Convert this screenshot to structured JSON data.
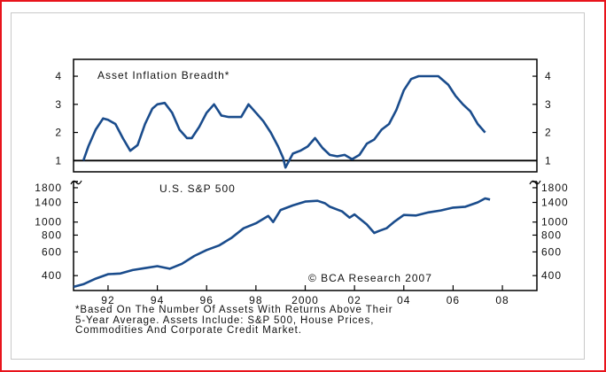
{
  "chart_data": [
    {
      "type": "line",
      "title": "Asset Inflation Breadth*",
      "color": "#1a4c8c",
      "baseline": 1,
      "ylim": [
        0.6,
        4.6
      ],
      "xlim": [
        1990.6,
        2009.4
      ],
      "yticks": [
        1,
        2,
        3,
        4
      ],
      "series": [
        {
          "x": [
            1991.0,
            1991.2,
            1991.5,
            1991.8,
            1992.0,
            1992.3,
            1992.6,
            1992.9,
            1993.2,
            1993.5,
            1993.8,
            1994.0,
            1994.3,
            1994.6,
            1994.9,
            1995.2,
            1995.4,
            1995.7,
            1996.0,
            1996.3,
            1996.6,
            1996.9,
            1997.1,
            1997.4,
            1997.7,
            1998.0,
            1998.3,
            1998.6,
            1998.9,
            1999.1,
            1999.2,
            1999.5,
            1999.8,
            2000.1,
            2000.4,
            2000.7,
            2001.0,
            2001.3,
            2001.6,
            2001.9,
            2002.2,
            2002.5,
            2002.8,
            2003.1,
            2003.4,
            2003.7,
            2004.0,
            2004.3,
            2004.6,
            2005.0,
            2005.4,
            2005.8,
            2006.1,
            2006.4,
            2006.7,
            2007.0,
            2007.3
          ],
          "y": [
            1.0,
            1.5,
            2.1,
            2.5,
            2.45,
            2.3,
            1.8,
            1.35,
            1.55,
            2.3,
            2.85,
            3.0,
            3.05,
            2.7,
            2.1,
            1.8,
            1.8,
            2.2,
            2.7,
            3.0,
            2.6,
            2.55,
            2.55,
            2.55,
            3.0,
            2.7,
            2.4,
            2.0,
            1.5,
            1.1,
            0.75,
            1.25,
            1.35,
            1.5,
            1.8,
            1.45,
            1.2,
            1.15,
            1.2,
            1.05,
            1.2,
            1.6,
            1.75,
            2.1,
            2.3,
            2.8,
            3.5,
            3.9,
            4.0,
            4.0,
            4.0,
            3.7,
            3.3,
            3.0,
            2.75,
            2.3,
            2.0
          ]
        }
      ]
    },
    {
      "type": "line",
      "title": "U.S. S&P 500",
      "color": "#1a4c8c",
      "yscale": "log",
      "ylim": [
        310,
        2000
      ],
      "xlim": [
        1990.6,
        2009.4
      ],
      "yticks": [
        400,
        600,
        800,
        1000,
        1400,
        1800
      ],
      "xticks": [
        "92",
        "94",
        "96",
        "98",
        "2000",
        "02",
        "04",
        "06",
        "08"
      ],
      "xtick_values": [
        1992,
        1994,
        1996,
        1998,
        2000,
        2002,
        2004,
        2006,
        2008
      ],
      "annotation": "© BCA Research 2007",
      "series": [
        {
          "x": [
            1990.6,
            1991.0,
            1991.5,
            1992.0,
            1992.5,
            1993.0,
            1993.5,
            1994.0,
            1994.5,
            1995.0,
            1995.5,
            1996.0,
            1996.5,
            1997.0,
            1997.5,
            1998.0,
            1998.5,
            1998.7,
            1999.0,
            1999.5,
            2000.0,
            2000.5,
            2000.8,
            2001.0,
            2001.5,
            2001.8,
            2002.0,
            2002.5,
            2002.8,
            2003.0,
            2003.3,
            2003.6,
            2004.0,
            2004.5,
            2005.0,
            2005.5,
            2006.0,
            2006.5,
            2007.0,
            2007.3,
            2007.5
          ],
          "y": [
            330,
            345,
            380,
            410,
            415,
            440,
            455,
            470,
            450,
            490,
            560,
            620,
            670,
            760,
            900,
            980,
            1110,
            1000,
            1230,
            1330,
            1420,
            1440,
            1380,
            1300,
            1200,
            1080,
            1140,
            960,
            830,
            860,
            900,
            1000,
            1130,
            1120,
            1180,
            1220,
            1280,
            1300,
            1400,
            1500,
            1470
          ]
        }
      ]
    }
  ],
  "footnote": "*Based On The Number Of Assets With Returns Above Their\n5-Year Average. Assets Include: S&P 500, House Prices,\nCommodities And Corporate Credit Market."
}
